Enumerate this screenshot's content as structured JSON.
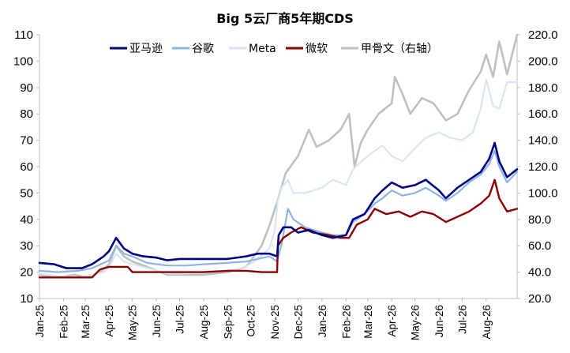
{
  "chart_data": {
    "type": "line",
    "title": "Big 5云厂商5年期CDS",
    "x_tick_labels": [
      "Jan-25",
      "Feb-25",
      "Mar-25",
      "Apr-25",
      "May-25",
      "Jun-25",
      "Jul-25",
      "Aug-25",
      "Sep-25",
      "Oct-25",
      "Nov-25",
      "Dec-25",
      "Jan-26",
      "Feb-26",
      "Mar-26",
      "Apr-26",
      "May-26",
      "Jun-26",
      "Jul-26",
      "Aug-26"
    ],
    "x_range": [
      "2025-01-01",
      "2026-09-10"
    ],
    "y_left": {
      "range": [
        10,
        110
      ],
      "ticks": [
        10,
        20,
        30,
        40,
        50,
        60,
        70,
        80,
        90,
        100,
        110
      ]
    },
    "y_right": {
      "range": [
        20,
        220
      ],
      "ticks": [
        "20.0",
        "40.0",
        "60.0",
        "80.0",
        "100.0",
        "120.0",
        "140.0",
        "160.0",
        "180.0",
        "200.0",
        "220.0"
      ],
      "tick_values": [
        20,
        40,
        60,
        80,
        100,
        120,
        140,
        160,
        180,
        200,
        220
      ]
    },
    "grid": false,
    "legend_position": "top",
    "series": [
      {
        "name": "亚马逊",
        "axis": "left",
        "color": "#000080",
        "width": 2.6,
        "points": [
          [
            "2025-01-01",
            23.5
          ],
          [
            "2025-01-20",
            23.0
          ],
          [
            "2025-02-05",
            21.5
          ],
          [
            "2025-02-25",
            21.5
          ],
          [
            "2025-03-10",
            23
          ],
          [
            "2025-03-25",
            26
          ],
          [
            "2025-04-01",
            28
          ],
          [
            "2025-04-10",
            33
          ],
          [
            "2025-04-20",
            29
          ],
          [
            "2025-05-01",
            27
          ],
          [
            "2025-05-15",
            26
          ],
          [
            "2025-06-01",
            25.5
          ],
          [
            "2025-06-15",
            24.5
          ],
          [
            "2025-07-01",
            25
          ],
          [
            "2025-07-20",
            25
          ],
          [
            "2025-08-10",
            25
          ],
          [
            "2025-09-01",
            25
          ],
          [
            "2025-09-25",
            26
          ],
          [
            "2025-10-10",
            27
          ],
          [
            "2025-10-25",
            27
          ],
          [
            "2025-11-04",
            26
          ],
          [
            "2025-11-06",
            34
          ],
          [
            "2025-11-12",
            37
          ],
          [
            "2025-11-22",
            37
          ],
          [
            "2025-12-01",
            35
          ],
          [
            "2025-12-15",
            36
          ],
          [
            "2026-01-01",
            34
          ],
          [
            "2026-01-15",
            33
          ],
          [
            "2026-02-01",
            34
          ],
          [
            "2026-02-10",
            40
          ],
          [
            "2026-02-25",
            42
          ],
          [
            "2026-03-10",
            48
          ],
          [
            "2026-03-20",
            51
          ],
          [
            "2026-04-01",
            54
          ],
          [
            "2026-04-15",
            52
          ],
          [
            "2026-05-01",
            53
          ],
          [
            "2026-05-15",
            55
          ],
          [
            "2026-06-01",
            51
          ],
          [
            "2026-06-10",
            48
          ],
          [
            "2026-06-25",
            52
          ],
          [
            "2026-07-10",
            55
          ],
          [
            "2026-07-25",
            58
          ],
          [
            "2026-08-05",
            63
          ],
          [
            "2026-08-12",
            69
          ],
          [
            "2026-08-18",
            62
          ],
          [
            "2026-08-28",
            56
          ],
          [
            "2026-09-10",
            59
          ]
        ]
      },
      {
        "name": "谷歌",
        "axis": "left",
        "color": "#8eb4e3",
        "width": 2.2,
        "points": [
          [
            "2025-01-01",
            20.5
          ],
          [
            "2025-01-25",
            20.0
          ],
          [
            "2025-02-20",
            20.5
          ],
          [
            "2025-03-10",
            21.5
          ],
          [
            "2025-03-25",
            23.5
          ],
          [
            "2025-04-01",
            24.5
          ],
          [
            "2025-04-10",
            30
          ],
          [
            "2025-04-20",
            27
          ],
          [
            "2025-05-01",
            26
          ],
          [
            "2025-05-20",
            23.5
          ],
          [
            "2025-06-15",
            22.5
          ],
          [
            "2025-07-10",
            22.5
          ],
          [
            "2025-08-01",
            23
          ],
          [
            "2025-09-01",
            23.5
          ],
          [
            "2025-09-25",
            24
          ],
          [
            "2025-10-10",
            25
          ],
          [
            "2025-10-25",
            26
          ],
          [
            "2025-11-04",
            24
          ],
          [
            "2025-11-10",
            31
          ],
          [
            "2025-11-18",
            44
          ],
          [
            "2025-11-25",
            40
          ],
          [
            "2025-12-10",
            37
          ],
          [
            "2026-01-01",
            35
          ],
          [
            "2026-01-15",
            34
          ],
          [
            "2026-02-01",
            34
          ],
          [
            "2026-02-10",
            39
          ],
          [
            "2026-02-25",
            42
          ],
          [
            "2026-03-10",
            46
          ],
          [
            "2026-03-20",
            48
          ],
          [
            "2026-04-01",
            51
          ],
          [
            "2026-04-15",
            49
          ],
          [
            "2026-05-01",
            50
          ],
          [
            "2026-05-15",
            52
          ],
          [
            "2026-06-01",
            49
          ],
          [
            "2026-06-10",
            47
          ],
          [
            "2026-06-25",
            50
          ],
          [
            "2026-07-10",
            54
          ],
          [
            "2026-07-25",
            57
          ],
          [
            "2026-08-05",
            61
          ],
          [
            "2026-08-12",
            66
          ],
          [
            "2026-08-18",
            60
          ],
          [
            "2026-08-28",
            54
          ],
          [
            "2026-09-10",
            58
          ]
        ]
      },
      {
        "name": "Meta",
        "axis": "left",
        "color": "#dae6f5",
        "width": 2.2,
        "points": [
          [
            "2025-01-01",
            19.5
          ],
          [
            "2025-01-25",
            18.5
          ],
          [
            "2025-02-20",
            18
          ],
          [
            "2025-03-10",
            19
          ],
          [
            "2025-03-25",
            20
          ],
          [
            "2025-04-01",
            22
          ],
          [
            "2025-04-10",
            27
          ],
          [
            "2025-04-20",
            24
          ],
          [
            "2025-05-01",
            23
          ],
          [
            "2025-05-20",
            21.5
          ],
          [
            "2025-06-15",
            19.5
          ],
          [
            "2025-07-10",
            19.5
          ],
          [
            "2025-08-01",
            20
          ],
          [
            "2025-09-01",
            20.5
          ],
          [
            "2025-09-25",
            22
          ],
          [
            "2025-10-10",
            25
          ],
          [
            "2025-10-25",
            29
          ],
          [
            "2025-11-01",
            36
          ],
          [
            "2025-11-05",
            47
          ],
          [
            "2025-11-10",
            52
          ],
          [
            "2025-11-18",
            55
          ],
          [
            "2025-11-25",
            50
          ],
          [
            "2025-12-10",
            50
          ],
          [
            "2026-01-01",
            52
          ],
          [
            "2026-01-15",
            55
          ],
          [
            "2026-02-01",
            53
          ],
          [
            "2026-02-10",
            59
          ],
          [
            "2026-02-25",
            63
          ],
          [
            "2026-03-10",
            66
          ],
          [
            "2026-03-20",
            68
          ],
          [
            "2026-04-01",
            64
          ],
          [
            "2026-04-15",
            62
          ],
          [
            "2026-05-01",
            67
          ],
          [
            "2026-05-15",
            71
          ],
          [
            "2026-06-01",
            73
          ],
          [
            "2026-06-15",
            71
          ],
          [
            "2026-07-01",
            70
          ],
          [
            "2026-07-15",
            73
          ],
          [
            "2026-07-25",
            82
          ],
          [
            "2026-08-01",
            93
          ],
          [
            "2026-08-10",
            83
          ],
          [
            "2026-08-18",
            82
          ],
          [
            "2026-08-28",
            92
          ],
          [
            "2026-09-10",
            92
          ]
        ]
      },
      {
        "name": "微软",
        "axis": "left",
        "color": "#8b0000",
        "width": 2.4,
        "points": [
          [
            "2025-01-01",
            18
          ],
          [
            "2025-02-01",
            18
          ],
          [
            "2025-03-10",
            18
          ],
          [
            "2025-03-20",
            21
          ],
          [
            "2025-04-01",
            22
          ],
          [
            "2025-04-25",
            22
          ],
          [
            "2025-05-01",
            20
          ],
          [
            "2025-06-01",
            20
          ],
          [
            "2025-07-01",
            20
          ],
          [
            "2025-08-01",
            20
          ],
          [
            "2025-09-01",
            20.5
          ],
          [
            "2025-09-25",
            20.5
          ],
          [
            "2025-10-15",
            20
          ],
          [
            "2025-11-04",
            20
          ],
          [
            "2025-11-05",
            30
          ],
          [
            "2025-11-12",
            33
          ],
          [
            "2025-11-22",
            35
          ],
          [
            "2025-12-05",
            37
          ],
          [
            "2025-12-20",
            35
          ],
          [
            "2026-01-10",
            34
          ],
          [
            "2026-01-25",
            33
          ],
          [
            "2026-02-05",
            33
          ],
          [
            "2026-02-15",
            38
          ],
          [
            "2026-03-01",
            40
          ],
          [
            "2026-03-10",
            44
          ],
          [
            "2026-03-25",
            42
          ],
          [
            "2026-04-10",
            43
          ],
          [
            "2026-04-25",
            41
          ],
          [
            "2026-05-10",
            43
          ],
          [
            "2026-05-25",
            42
          ],
          [
            "2026-06-10",
            39
          ],
          [
            "2026-06-25",
            41
          ],
          [
            "2026-07-10",
            43
          ],
          [
            "2026-07-25",
            46
          ],
          [
            "2026-08-05",
            49
          ],
          [
            "2026-08-12",
            55
          ],
          [
            "2026-08-18",
            48
          ],
          [
            "2026-08-28",
            43
          ],
          [
            "2026-09-10",
            44
          ]
        ]
      },
      {
        "name": "甲骨文（右轴）",
        "axis": "right",
        "color": "#bfbfbf",
        "width": 2.6,
        "points": [
          [
            "2025-01-01",
            38
          ],
          [
            "2025-01-25",
            36
          ],
          [
            "2025-02-15",
            38
          ],
          [
            "2025-03-05",
            36
          ],
          [
            "2025-03-20",
            40
          ],
          [
            "2025-04-01",
            46
          ],
          [
            "2025-04-10",
            60
          ],
          [
            "2025-04-20",
            52
          ],
          [
            "2025-05-01",
            48
          ],
          [
            "2025-05-20",
            44
          ],
          [
            "2025-06-15",
            38
          ],
          [
            "2025-07-10",
            38
          ],
          [
            "2025-08-01",
            38
          ],
          [
            "2025-09-01",
            40
          ],
          [
            "2025-09-25",
            44
          ],
          [
            "2025-10-05",
            52
          ],
          [
            "2025-10-15",
            60
          ],
          [
            "2025-10-25",
            75
          ],
          [
            "2025-11-05",
            95
          ],
          [
            "2025-11-15",
            115
          ],
          [
            "2025-12-01",
            128
          ],
          [
            "2025-12-15",
            148
          ],
          [
            "2025-12-25",
            135
          ],
          [
            "2026-01-10",
            140
          ],
          [
            "2026-01-25",
            148
          ],
          [
            "2026-02-05",
            160
          ],
          [
            "2026-02-12",
            120
          ],
          [
            "2026-02-20",
            138
          ],
          [
            "2026-03-01",
            148
          ],
          [
            "2026-03-15",
            160
          ],
          [
            "2026-04-01",
            168
          ],
          [
            "2026-04-05",
            188
          ],
          [
            "2026-04-15",
            175
          ],
          [
            "2026-04-25",
            160
          ],
          [
            "2026-05-10",
            172
          ],
          [
            "2026-05-25",
            168
          ],
          [
            "2026-06-10",
            155
          ],
          [
            "2026-06-25",
            160
          ],
          [
            "2026-07-10",
            178
          ],
          [
            "2026-07-25",
            192
          ],
          [
            "2026-08-01",
            205
          ],
          [
            "2026-08-10",
            188
          ],
          [
            "2026-08-18",
            215
          ],
          [
            "2026-08-28",
            190
          ],
          [
            "2026-09-10",
            220
          ]
        ]
      }
    ]
  }
}
